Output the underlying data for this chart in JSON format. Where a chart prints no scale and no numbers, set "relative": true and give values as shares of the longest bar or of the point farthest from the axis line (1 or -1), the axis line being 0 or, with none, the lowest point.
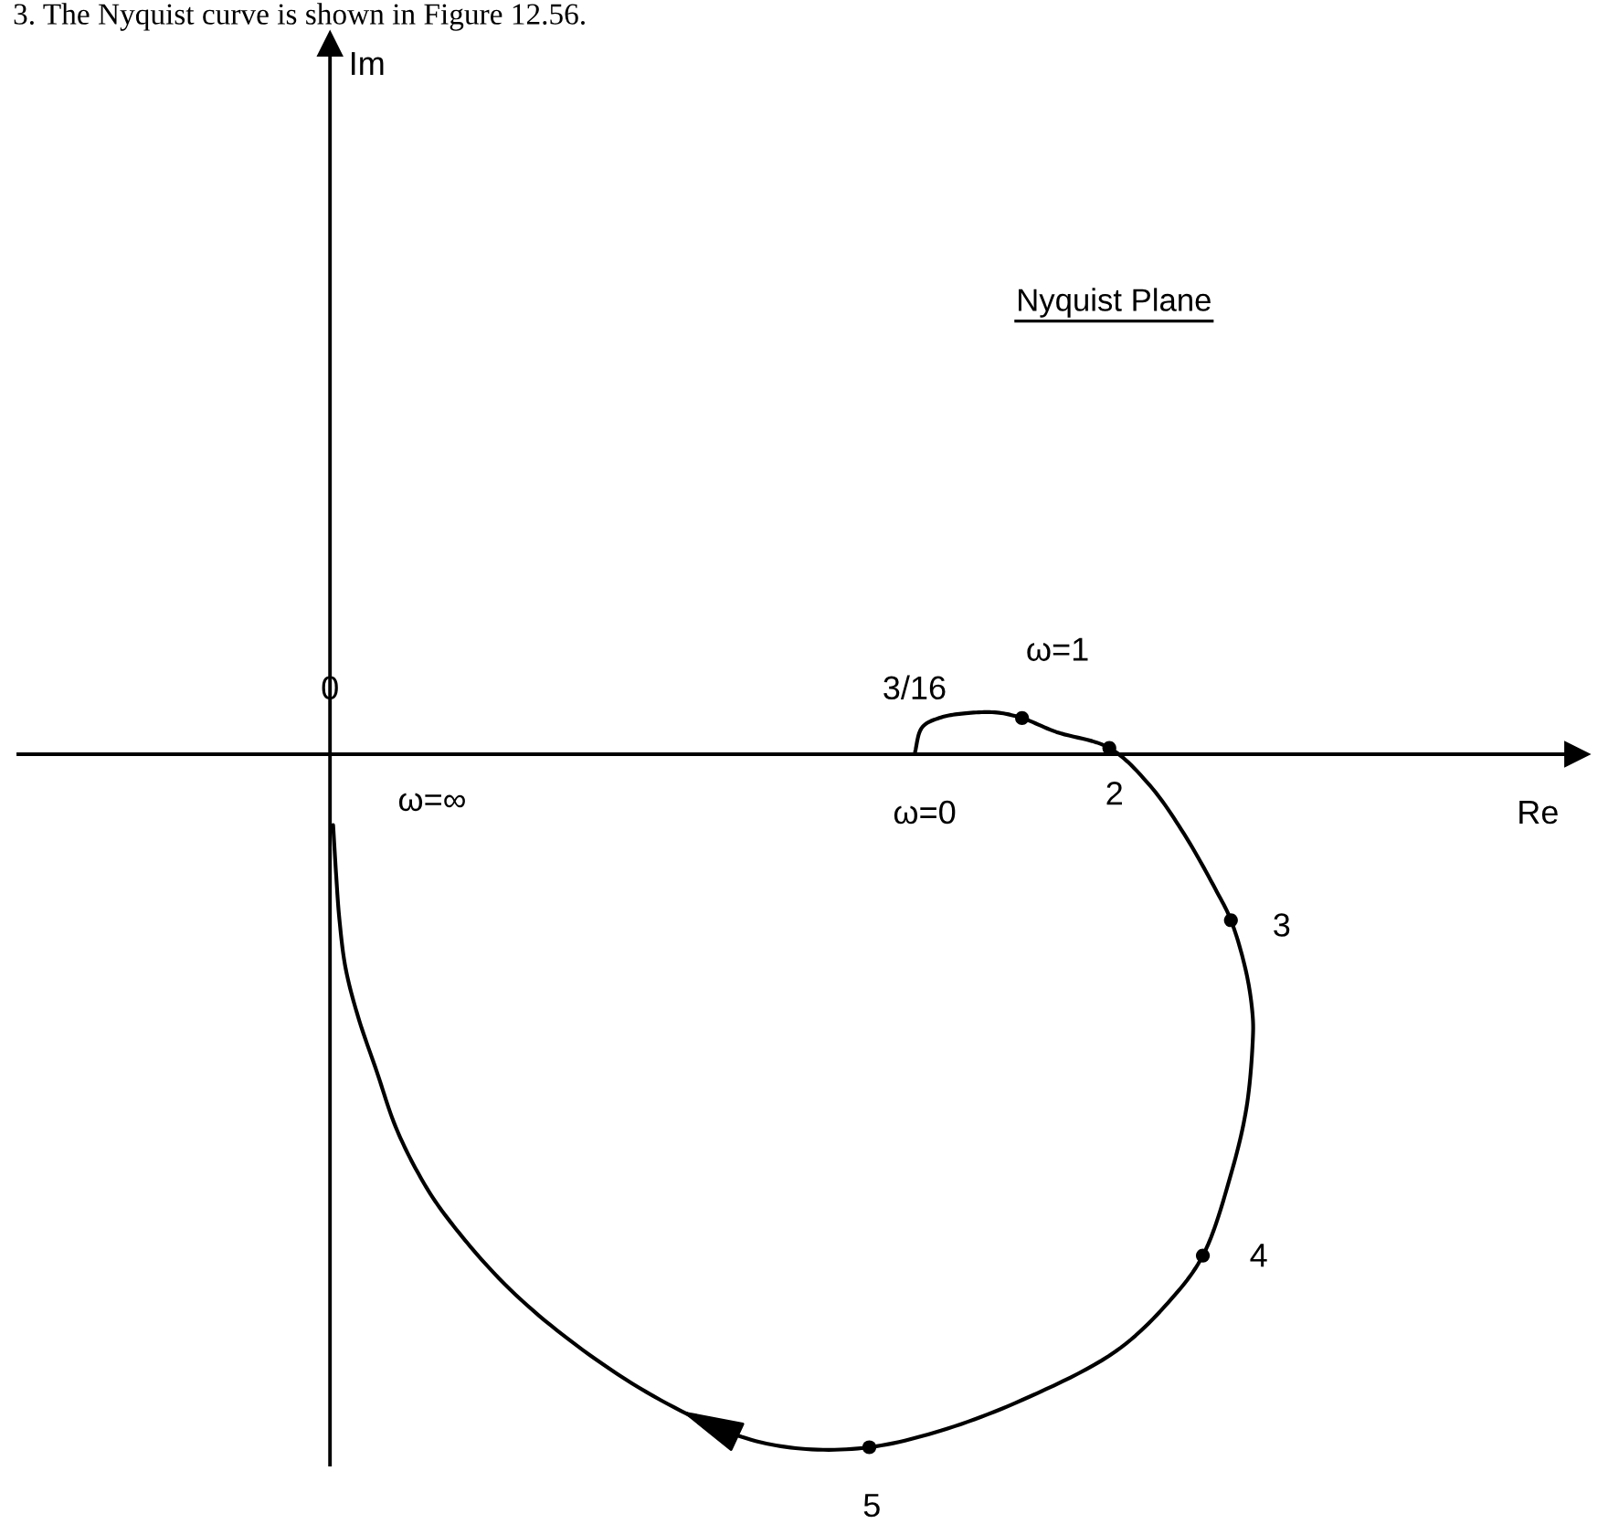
{
  "chart_data": {
    "type": "line",
    "title": "Nyquist Plane",
    "xlabel": "Re",
    "relative": true,
    "xlim": [
      -0.1,
      0.4
    ],
    "xticks": [
      {
        "value": 0,
        "label": "0"
      },
      {
        "value": 0.1875,
        "label": "3/16"
      }
    ],
    "tick_labels": "x",
    "line_style": "solid",
    "series": [
      {
        "color": "#000000",
        "marker": "none",
        "x": [
          0.1875,
          0.19,
          0.196,
          0.204,
          0.214,
          0.222,
          0.233,
          0.25,
          0.263,
          0.274,
          0.284,
          0.289,
          0.294,
          0.296,
          0.296,
          0.294,
          0.289,
          0.28,
          0.269,
          0.252,
          0.222,
          0.196,
          0.173,
          0.151,
          0.132,
          0.106,
          0.079,
          0.056,
          0.036,
          0.028,
          0.021,
          0.015,
          0.009,
          0.005,
          0.003,
          0.002,
          0.001
        ],
        "values": [
          0,
          0.039,
          0.053,
          0.059,
          0.06,
          0.052,
          0.032,
          0.009,
          -0.045,
          -0.115,
          -0.194,
          -0.239,
          -0.316,
          -0.378,
          -0.413,
          -0.509,
          -0.605,
          -0.722,
          -0.789,
          -0.86,
          -0.93,
          -0.974,
          -0.998,
          -1,
          -0.983,
          -0.93,
          -0.851,
          -0.763,
          -0.658,
          -0.601,
          -0.536,
          -0.457,
          -0.378,
          -0.308,
          -0.237,
          -0.176,
          -0.102
        ]
      },
      {
        "type": "scatter",
        "color": "#000000",
        "marker": "circle",
        "x": [
          0.222,
          0.25,
          0.289,
          0.28,
          0.173
        ],
        "values": [
          0.052,
          0.009,
          -0.239,
          -0.722,
          -0.998
        ]
      }
    ],
    "annotations": [
      "3. The Nyquist curve is shown in Figure 12.56.",
      "Im",
      {
        "text": "ω=1",
        "x": 0.222,
        "y": 0.052
      },
      {
        "text": "2",
        "x": 0.25,
        "y": 0.009
      },
      {
        "text": "3",
        "x": 0.289,
        "y": -0.239
      },
      {
        "text": "4",
        "x": 0.28,
        "y": -0.722
      },
      {
        "text": "5",
        "x": 0.173,
        "y": -0.998
      },
      {
        "text": "ω=0",
        "x": 0.1875,
        "y": 0
      },
      {
        "text": "ω=∞",
        "x": 0.001,
        "y": -0.102
      }
    ]
  }
}
